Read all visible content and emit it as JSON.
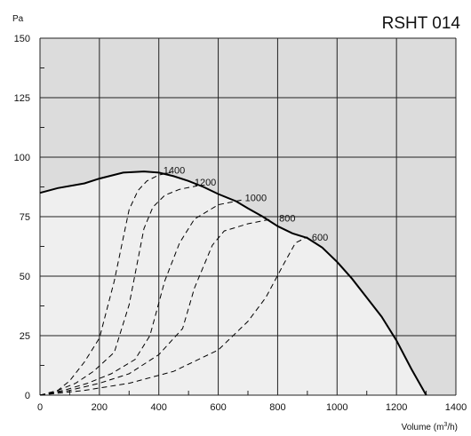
{
  "chart_data": {
    "type": "line",
    "title": "RSHT 014",
    "ylabel": "Pa",
    "xlabel": "Volume (m3/h)",
    "xlabel_parts": {
      "prefix": "Volume (m",
      "sup": "3",
      "suffix": "/h)"
    },
    "xlim": [
      0,
      1400
    ],
    "ylim": [
      0,
      150
    ],
    "x_ticks": [
      "0",
      "200",
      "400",
      "600",
      "800",
      "1000",
      "1200",
      "1400"
    ],
    "y_ticks": [
      "0",
      "25",
      "50",
      "75",
      "100",
      "125",
      "150"
    ],
    "grid": true,
    "colors": {
      "plot_bg": "#dcdcdc",
      "operating_area": "#efefef",
      "grid": "#222222",
      "max_curve": "#000000",
      "speed_curves": "#000000"
    },
    "max_curve": {
      "x": [
        0,
        60,
        150,
        200,
        280,
        350,
        400,
        450,
        500,
        550,
        600,
        660,
        700,
        750,
        800,
        850,
        900,
        950,
        1000,
        1050,
        1100,
        1150,
        1200,
        1250,
        1300
      ],
      "y": [
        85,
        87,
        89,
        91,
        93.5,
        94,
        93.5,
        92,
        90,
        87.5,
        84.5,
        81.5,
        78.5,
        75,
        71,
        68,
        66,
        62,
        56,
        49,
        41,
        33,
        23,
        11,
        0
      ]
    },
    "series": [
      {
        "name": "1400",
        "label_at": [
          415,
          94.5
        ],
        "x": [
          0,
          50,
          100,
          150,
          200,
          250,
          300,
          330,
          360,
          400,
          440
        ],
        "y": [
          0,
          1,
          6,
          14,
          24,
          48,
          78,
          86,
          90,
          92.5,
          93.5
        ]
      },
      {
        "name": "1200",
        "label_at": [
          520,
          89.5
        ],
        "x": [
          0,
          60,
          120,
          180,
          250,
          300,
          350,
          380,
          420,
          470,
          530
        ],
        "y": [
          0,
          2,
          5,
          10,
          18,
          38,
          70,
          79,
          84,
          86.5,
          88
        ]
      },
      {
        "name": "1000",
        "label_at": [
          690,
          83
        ],
        "x": [
          0,
          80,
          160,
          240,
          320,
          370,
          420,
          470,
          520,
          600,
          680
        ],
        "y": [
          0,
          2,
          5,
          9,
          15,
          25,
          48,
          64,
          74,
          80,
          82
        ]
      },
      {
        "name": "800",
        "label_at": [
          805,
          74.5
        ],
        "x": [
          0,
          100,
          200,
          300,
          400,
          480,
          520,
          580,
          620,
          700,
          780
        ],
        "y": [
          0,
          2,
          5,
          9,
          17,
          28,
          45,
          63,
          69,
          72,
          74
        ]
      },
      {
        "name": "600",
        "label_at": [
          915,
          66.5
        ],
        "x": [
          0,
          150,
          300,
          450,
          600,
          700,
          760,
          820,
          860,
          900
        ],
        "y": [
          0,
          2,
          5,
          10,
          19,
          31,
          41,
          55,
          64,
          66.5
        ]
      }
    ]
  }
}
